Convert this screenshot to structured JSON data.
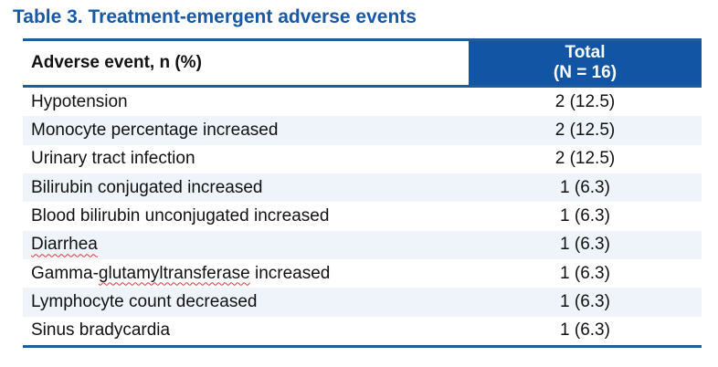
{
  "title": "Table 3. Treatment-emergent adverse events",
  "colors": {
    "title_blue": "#1659A8",
    "header_fill_blue": "#1155A4",
    "border_blue": "#1E5C9E",
    "light_accent_line": "#C2D3E8",
    "banded_row": "#EFF3FA",
    "body_text": "#111111",
    "spellcheck_red": "#E0392F"
  },
  "header": {
    "col1": "Adverse event, n (%)",
    "col2_line1": "Total",
    "col2_line2": "(N = 16)"
  },
  "rows": [
    {
      "event": "Hypotension",
      "value": "2 (12.5)"
    },
    {
      "event": "Monocyte percentage increased",
      "value": "2 (12.5)"
    },
    {
      "event": "Urinary tract infection",
      "value": "2 (12.5)"
    },
    {
      "event": "Bilirubin conjugated increased",
      "value": "1 (6.3)"
    },
    {
      "event": "Blood bilirubin unconjugated increased",
      "value": "1 (6.3)"
    },
    {
      "event": "Diarrhea",
      "value": "1 (6.3)",
      "misspelled": "Diarrhea"
    },
    {
      "event": "Gamma-glutamyltransferase increased",
      "value": "1 (6.3)",
      "misspelled": "glutamyltransferase"
    },
    {
      "event": "Lymphocyte count decreased",
      "value": "1 (6.3)"
    },
    {
      "event": "Sinus bradycardia",
      "value": "1 (6.3)"
    }
  ],
  "chart_data": {
    "type": "table",
    "title": "Table 3. Treatment-emergent adverse events",
    "columns": [
      "Adverse event, n (%)",
      "Total (N = 16)"
    ],
    "rows": [
      [
        "Hypotension",
        "2 (12.5)"
      ],
      [
        "Monocyte percentage increased",
        "2 (12.5)"
      ],
      [
        "Urinary tract infection",
        "2 (12.5)"
      ],
      [
        "Bilirubin conjugated increased",
        "1 (6.3)"
      ],
      [
        "Blood bilirubin unconjugated increased",
        "1 (6.3)"
      ],
      [
        "Diarrhea",
        "1 (6.3)"
      ],
      [
        "Gamma-glutamyltransferase increased",
        "1 (6.3)"
      ],
      [
        "Lymphocyte count decreased",
        "1 (6.3)"
      ],
      [
        "Sinus bradycardia",
        "1 (6.3)"
      ]
    ]
  }
}
